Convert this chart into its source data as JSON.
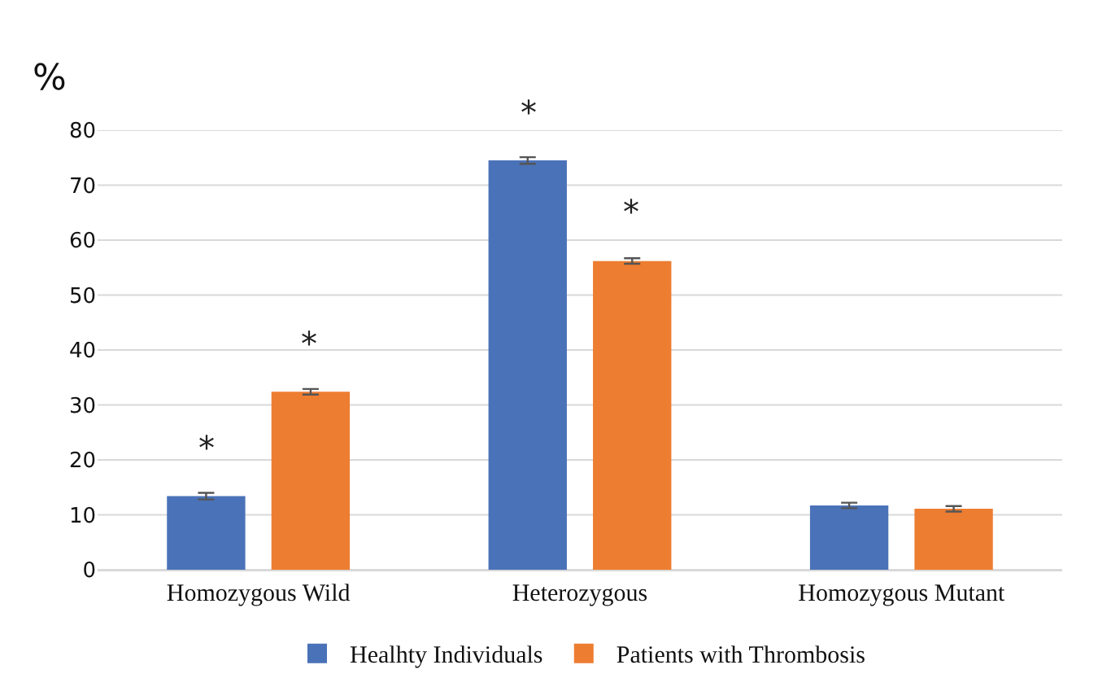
{
  "chart_data": {
    "type": "bar",
    "ylabel": "%",
    "categories": [
      "Homozygous Wild",
      "Heterozygous",
      "Homozygous Mutant"
    ],
    "series": [
      {
        "name": "Healhty Individuals",
        "color": "#4a72b8",
        "values": [
          13.4,
          74.5,
          11.7
        ],
        "errors": [
          0.6,
          0.6,
          0.5
        ]
      },
      {
        "name": "Patients with Thrombosis",
        "color": "#ed7d31",
        "values": [
          32.4,
          56.2,
          11.1
        ],
        "errors": [
          0.5,
          0.5,
          0.5
        ]
      }
    ],
    "ylim": [
      0,
      80
    ],
    "yticks": [
      0,
      10,
      20,
      30,
      40,
      50,
      60,
      70,
      80
    ],
    "grid": "y",
    "legend": "bottom",
    "annotations": [
      "*",
      "*",
      "*",
      "*"
    ]
  }
}
